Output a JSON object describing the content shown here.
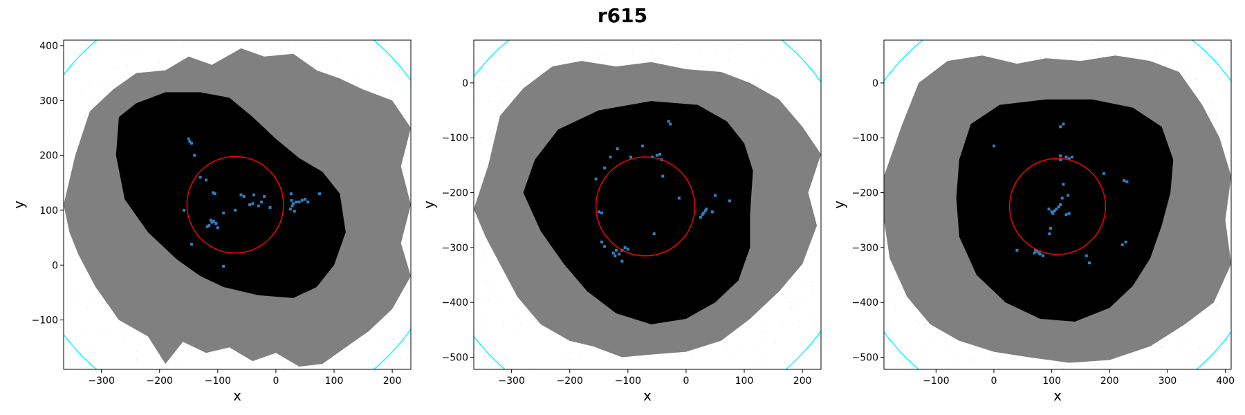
{
  "figure": {
    "title": "r615"
  },
  "colors": {
    "outer_region": "#808080",
    "inner_region": "#000000",
    "points": "#2b83c4",
    "inner_circle": "#ff0000",
    "outer_circle": "#00ffff",
    "noise": "#c8c8c8"
  },
  "chart_data": [
    {
      "type": "scatter",
      "title": "",
      "xlabel": "x",
      "ylabel": "y",
      "xlim": [
        -365,
        232
      ],
      "ylim": [
        -190,
        410
      ],
      "xticks": [
        -300,
        -200,
        -100,
        0,
        100,
        200
      ],
      "yticks": [
        -100,
        0,
        100,
        200,
        300,
        400
      ],
      "tick_labels_x": [
        "−300",
        "−200",
        "−100",
        "0",
        "100",
        "200"
      ],
      "tick_labels_y": [
        "−100",
        "0",
        "100",
        "200",
        "300",
        "400"
      ],
      "grid": false,
      "circles": [
        {
          "name": "inner",
          "cx": -70,
          "cy": 110,
          "r": 83
        },
        {
          "name": "outer",
          "cx": -70,
          "cy": 110,
          "r": 370
        }
      ],
      "outer_region": [
        [
          -365,
          110
        ],
        [
          -345,
          200
        ],
        [
          -320,
          280
        ],
        [
          -280,
          320
        ],
        [
          -240,
          350
        ],
        [
          -190,
          355
        ],
        [
          -150,
          380
        ],
        [
          -110,
          365
        ],
        [
          -60,
          395
        ],
        [
          -20,
          380
        ],
        [
          30,
          385
        ],
        [
          70,
          355
        ],
        [
          110,
          340
        ],
        [
          150,
          320
        ],
        [
          200,
          300
        ],
        [
          232,
          250
        ],
        [
          215,
          180
        ],
        [
          232,
          110
        ],
        [
          215,
          40
        ],
        [
          232,
          -20
        ],
        [
          200,
          -80
        ],
        [
          160,
          -120
        ],
        [
          120,
          -150
        ],
        [
          80,
          -180
        ],
        [
          40,
          -185
        ],
        [
          0,
          -160
        ],
        [
          -40,
          -175
        ],
        [
          -80,
          -150
        ],
        [
          -120,
          -160
        ],
        [
          -160,
          -140
        ],
        [
          -190,
          -180
        ],
        [
          -220,
          -130
        ],
        [
          -270,
          -100
        ],
        [
          -310,
          -40
        ],
        [
          -340,
          20
        ],
        [
          -355,
          60
        ]
      ],
      "inner_region": [
        [
          -270,
          270
        ],
        [
          -240,
          295
        ],
        [
          -190,
          315
        ],
        [
          -130,
          315
        ],
        [
          -80,
          305
        ],
        [
          -40,
          270
        ],
        [
          0,
          230
        ],
        [
          40,
          195
        ],
        [
          80,
          170
        ],
        [
          110,
          130
        ],
        [
          120,
          60
        ],
        [
          100,
          0
        ],
        [
          70,
          -40
        ],
        [
          30,
          -60
        ],
        [
          -30,
          -55
        ],
        [
          -90,
          -40
        ],
        [
          -130,
          -20
        ],
        [
          -170,
          10
        ],
        [
          -220,
          60
        ],
        [
          -260,
          120
        ],
        [
          -275,
          200
        ]
      ],
      "points": [
        [
          -150,
          230
        ],
        [
          -148,
          225
        ],
        [
          -145,
          222
        ],
        [
          -140,
          200
        ],
        [
          -130,
          160
        ],
        [
          -120,
          155
        ],
        [
          -108,
          132
        ],
        [
          -105,
          130
        ],
        [
          -112,
          82
        ],
        [
          -110,
          78
        ],
        [
          -107,
          80
        ],
        [
          -115,
          72
        ],
        [
          -118,
          70
        ],
        [
          -103,
          76
        ],
        [
          -100,
          68
        ],
        [
          -158,
          100
        ],
        [
          -145,
          38
        ],
        [
          -90,
          95
        ],
        [
          -70,
          100
        ],
        [
          -55,
          125
        ],
        [
          -45,
          110
        ],
        [
          -40,
          112
        ],
        [
          -38,
          128
        ],
        [
          -30,
          108
        ],
        [
          -25,
          115
        ],
        [
          -20,
          125
        ],
        [
          -10,
          105
        ],
        [
          25,
          102
        ],
        [
          28,
          108
        ],
        [
          30,
          112
        ],
        [
          27,
          118
        ],
        [
          35,
          115
        ],
        [
          32,
          98
        ],
        [
          26,
          130
        ],
        [
          40,
          115
        ],
        [
          45,
          118
        ],
        [
          50,
          120
        ],
        [
          55,
          115
        ],
        [
          75,
          130
        ],
        [
          -90,
          -2
        ],
        [
          -60,
          128
        ]
      ]
    },
    {
      "type": "scatter",
      "title": "",
      "xlabel": "x",
      "ylabel": "y",
      "xlim": [
        -365,
        232
      ],
      "ylim": [
        -522,
        78
      ],
      "xticks": [
        -300,
        -200,
        -100,
        0,
        100,
        200
      ],
      "yticks": [
        -500,
        -400,
        -300,
        -200,
        -100,
        0
      ],
      "tick_labels_x": [
        "−300",
        "−200",
        "−100",
        "0",
        "100",
        "200"
      ],
      "tick_labels_y": [
        "−500",
        "−400",
        "−300",
        "−200",
        "−100",
        "0"
      ],
      "grid": false,
      "circles": [
        {
          "name": "inner",
          "cx": -70,
          "cy": -225,
          "r": 85
        },
        {
          "name": "outer",
          "cx": -70,
          "cy": -225,
          "r": 370
        }
      ],
      "outer_region": [
        [
          -365,
          -230
        ],
        [
          -340,
          -150
        ],
        [
          -320,
          -60
        ],
        [
          -280,
          -10
        ],
        [
          -230,
          30
        ],
        [
          -180,
          40
        ],
        [
          -120,
          30
        ],
        [
          -60,
          38
        ],
        [
          0,
          25
        ],
        [
          60,
          20
        ],
        [
          110,
          0
        ],
        [
          160,
          -30
        ],
        [
          200,
          -80
        ],
        [
          232,
          -130
        ],
        [
          210,
          -200
        ],
        [
          225,
          -260
        ],
        [
          200,
          -330
        ],
        [
          160,
          -380
        ],
        [
          110,
          -430
        ],
        [
          60,
          -470
        ],
        [
          0,
          -490
        ],
        [
          -60,
          -495
        ],
        [
          -110,
          -500
        ],
        [
          -160,
          -480
        ],
        [
          -200,
          -470
        ],
        [
          -250,
          -440
        ],
        [
          -290,
          -390
        ],
        [
          -320,
          -330
        ],
        [
          -345,
          -280
        ]
      ],
      "inner_region": [
        [
          -260,
          -140
        ],
        [
          -220,
          -85
        ],
        [
          -150,
          -50
        ],
        [
          -60,
          -33
        ],
        [
          20,
          -40
        ],
        [
          70,
          -70
        ],
        [
          100,
          -110
        ],
        [
          115,
          -160
        ],
        [
          110,
          -240
        ],
        [
          110,
          -300
        ],
        [
          90,
          -360
        ],
        [
          50,
          -400
        ],
        [
          0,
          -430
        ],
        [
          -60,
          -440
        ],
        [
          -120,
          -420
        ],
        [
          -170,
          -380
        ],
        [
          -210,
          -330
        ],
        [
          -250,
          -270
        ],
        [
          -280,
          -200
        ]
      ],
      "points": [
        [
          -150,
          -235
        ],
        [
          -145,
          -237
        ],
        [
          -155,
          -175
        ],
        [
          -140,
          -155
        ],
        [
          -130,
          -135
        ],
        [
          -118,
          -120
        ],
        [
          -95,
          -135
        ],
        [
          -75,
          -115
        ],
        [
          -58,
          -135
        ],
        [
          -50,
          -132
        ],
        [
          -45,
          -130
        ],
        [
          -42,
          -140
        ],
        [
          -40,
          -170
        ],
        [
          -30,
          -70
        ],
        [
          -27,
          -75
        ],
        [
          -12,
          -210
        ],
        [
          -55,
          -275
        ],
        [
          25,
          -245
        ],
        [
          28,
          -240
        ],
        [
          30,
          -237
        ],
        [
          33,
          -233
        ],
        [
          35,
          -230
        ],
        [
          45,
          -235
        ],
        [
          50,
          -205
        ],
        [
          75,
          -215
        ],
        [
          -120,
          -305
        ],
        [
          -125,
          -310
        ],
        [
          -122,
          -315
        ],
        [
          -115,
          -312
        ],
        [
          -110,
          -305
        ],
        [
          -105,
          -300
        ],
        [
          -100,
          -303
        ],
        [
          -110,
          -325
        ],
        [
          -145,
          -290
        ],
        [
          -140,
          -298
        ]
      ]
    },
    {
      "type": "scatter",
      "title": "",
      "xlabel": "x",
      "ylabel": "y",
      "xlim": [
        -190,
        410
      ],
      "ylim": [
        -522,
        78
      ],
      "xticks": [
        -100,
        0,
        100,
        200,
        300,
        400
      ],
      "yticks": [
        -500,
        -400,
        -300,
        -200,
        -100,
        0
      ],
      "tick_labels_x": [
        "−100",
        "0",
        "100",
        "200",
        "300",
        "400"
      ],
      "tick_labels_y": [
        "−500",
        "−400",
        "−300",
        "−200",
        "−100",
        "0"
      ],
      "grid": false,
      "circles": [
        {
          "name": "inner",
          "cx": 110,
          "cy": -225,
          "r": 83
        },
        {
          "name": "outer",
          "cx": 110,
          "cy": -225,
          "r": 370
        }
      ],
      "outer_region": [
        [
          -190,
          -170
        ],
        [
          -160,
          -80
        ],
        [
          -130,
          0
        ],
        [
          -80,
          40
        ],
        [
          -20,
          50
        ],
        [
          40,
          35
        ],
        [
          90,
          45
        ],
        [
          150,
          40
        ],
        [
          210,
          50
        ],
        [
          270,
          40
        ],
        [
          320,
          20
        ],
        [
          360,
          -40
        ],
        [
          390,
          -100
        ],
        [
          410,
          -170
        ],
        [
          400,
          -250
        ],
        [
          410,
          -330
        ],
        [
          380,
          -400
        ],
        [
          330,
          -440
        ],
        [
          270,
          -480
        ],
        [
          200,
          -505
        ],
        [
          130,
          -510
        ],
        [
          60,
          -500
        ],
        [
          0,
          -490
        ],
        [
          -60,
          -470
        ],
        [
          -110,
          -440
        ],
        [
          -150,
          -390
        ],
        [
          -180,
          -320
        ],
        [
          -190,
          -250
        ]
      ],
      "inner_region": [
        [
          -60,
          -140
        ],
        [
          -40,
          -75
        ],
        [
          10,
          -40
        ],
        [
          90,
          -30
        ],
        [
          170,
          -30
        ],
        [
          240,
          -45
        ],
        [
          290,
          -80
        ],
        [
          310,
          -140
        ],
        [
          305,
          -200
        ],
        [
          290,
          -260
        ],
        [
          270,
          -320
        ],
        [
          240,
          -370
        ],
        [
          200,
          -410
        ],
        [
          140,
          -435
        ],
        [
          80,
          -430
        ],
        [
          20,
          -400
        ],
        [
          -30,
          -350
        ],
        [
          -60,
          -280
        ],
        [
          -65,
          -210
        ]
      ],
      "points": [
        [
          0,
          -115
        ],
        [
          95,
          -230
        ],
        [
          100,
          -235
        ],
        [
          102,
          -238
        ],
        [
          105,
          -233
        ],
        [
          108,
          -230
        ],
        [
          112,
          -226
        ],
        [
          115,
          -222
        ],
        [
          118,
          -210
        ],
        [
          120,
          -185
        ],
        [
          115,
          -140
        ],
        [
          115,
          -133
        ],
        [
          125,
          -135
        ],
        [
          130,
          -138
        ],
        [
          135,
          -135
        ],
        [
          120,
          -75
        ],
        [
          115,
          -80
        ],
        [
          125,
          -240
        ],
        [
          130,
          -238
        ],
        [
          128,
          -205
        ],
        [
          98,
          -265
        ],
        [
          96,
          -275
        ],
        [
          75,
          -307
        ],
        [
          78,
          -310
        ],
        [
          80,
          -312
        ],
        [
          85,
          -315
        ],
        [
          72,
          -305
        ],
        [
          70,
          -310
        ],
        [
          40,
          -305
        ],
        [
          160,
          -315
        ],
        [
          165,
          -328
        ],
        [
          190,
          -165
        ],
        [
          225,
          -178
        ],
        [
          230,
          -180
        ],
        [
          222,
          -295
        ],
        [
          228,
          -290
        ]
      ]
    }
  ]
}
